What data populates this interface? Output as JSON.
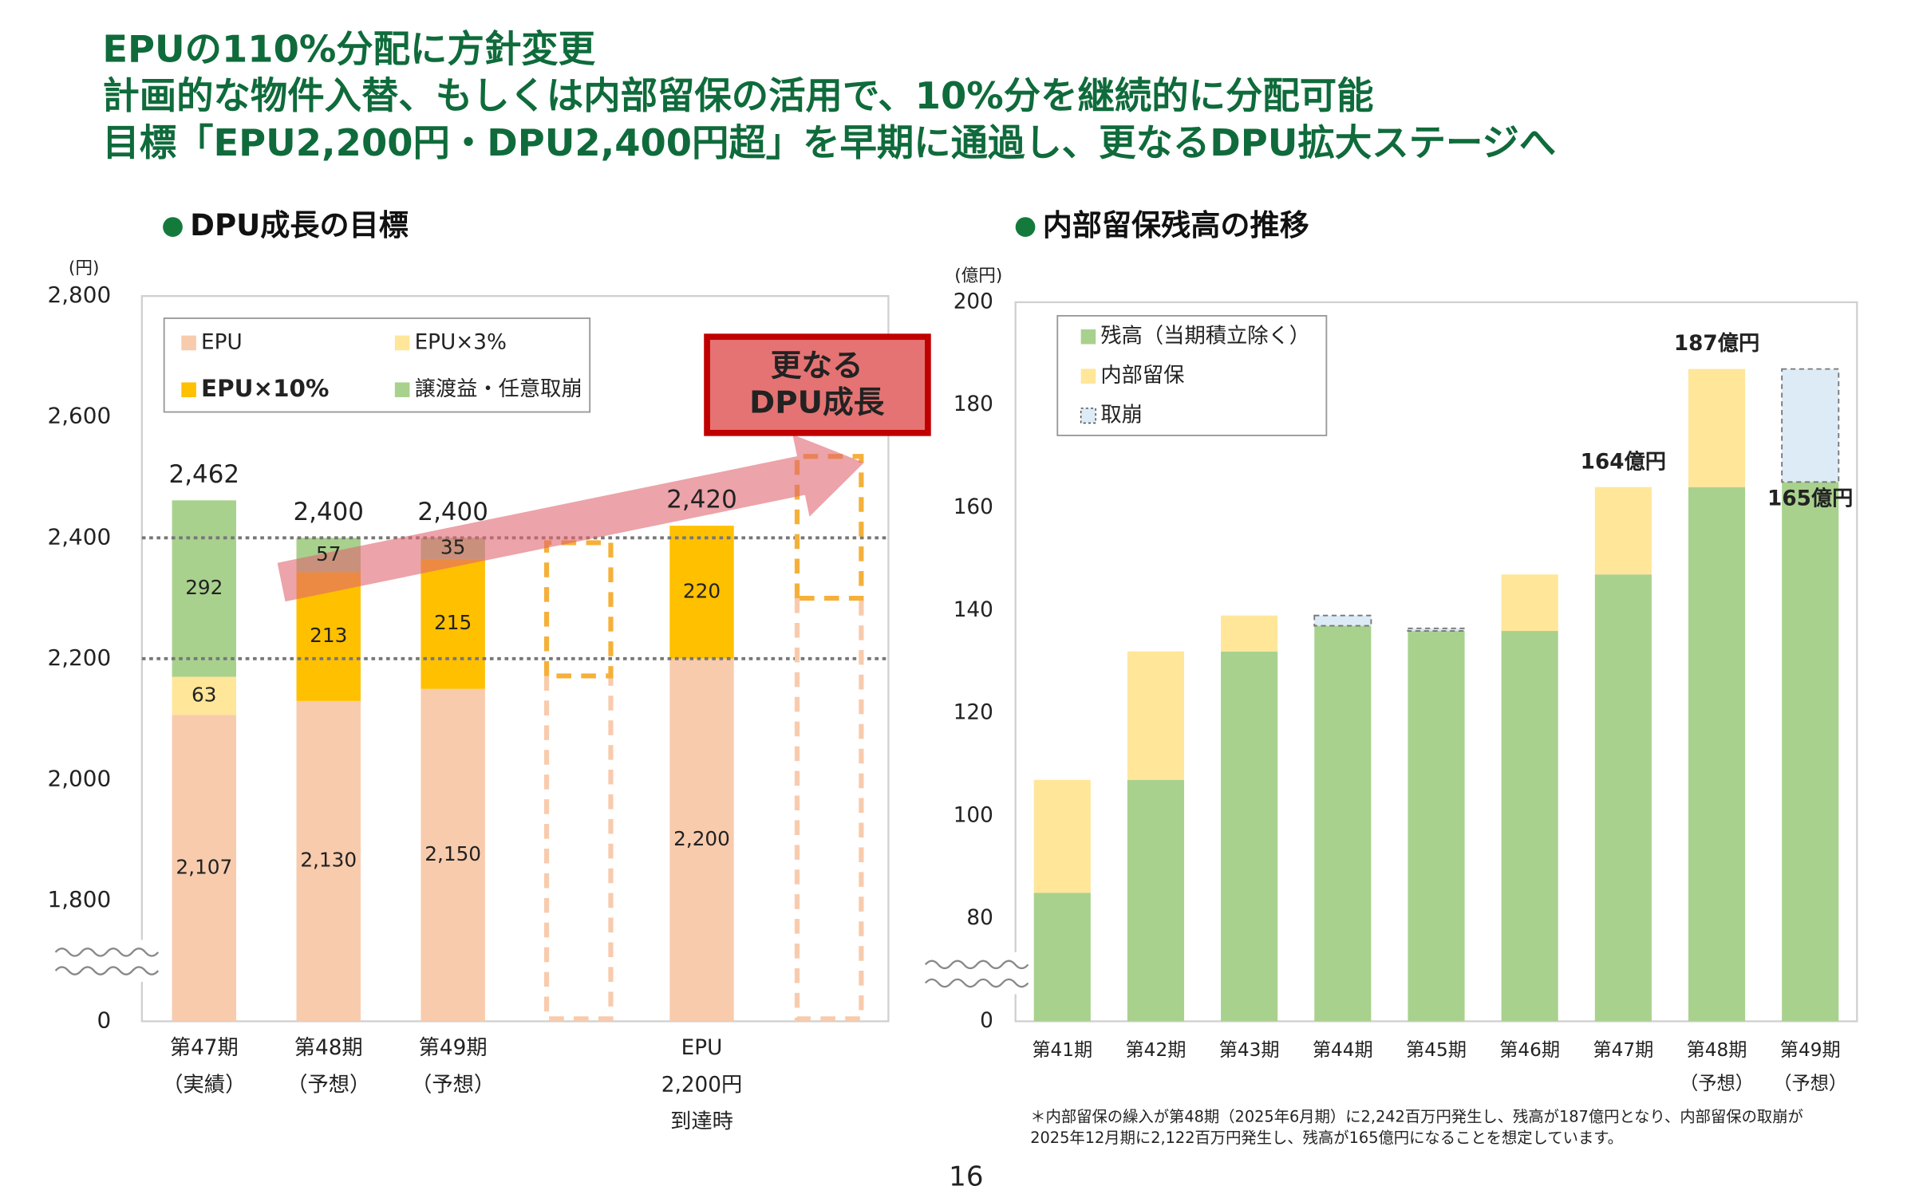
{
  "headline": [
    "EPUの110%分配に方針変更",
    "計画的な物件入替、もしくは内部留保の活用で、10%分を継続的に分配可能",
    "目標「EPU2,200円・DPU2,400円超」を早期に通過し、更なるDPU拡大ステージへ"
  ],
  "chart_data": [
    {
      "type": "bar",
      "stacked": true,
      "title": "DPU成長の目標",
      "y_unit": "(円)",
      "categories": [
        [
          "第47期",
          "（実績）"
        ],
        [
          "第48期",
          "（予想）"
        ],
        [
          "第49期",
          "（予想）"
        ],
        null,
        [
          "EPU",
          "2,200円",
          "到達時"
        ],
        null
      ],
      "series": [
        {
          "name": "EPU",
          "color": "#f8cbad",
          "values": [
            2107,
            2130,
            2150,
            null,
            2200,
            null
          ],
          "value_labels": [
            "2,107",
            "2,130",
            "2,150",
            null,
            "2,200",
            null
          ]
        },
        {
          "name": "EPU×3%",
          "color": "#ffe699",
          "values": [
            63,
            null,
            null,
            null,
            null,
            null
          ]
        },
        {
          "name": "EPU×10%",
          "color": "#ffc000",
          "values": [
            null,
            213,
            215,
            null,
            220,
            null
          ],
          "legend_bold": true
        },
        {
          "name": "譲渡益・任意取崩",
          "color": "#a9d18e",
          "values": [
            292,
            57,
            35,
            null,
            null,
            null
          ]
        }
      ],
      "totals": [
        2462,
        2400,
        2400,
        null,
        2420,
        null
      ],
      "total_labels": [
        "2,462",
        "2,400",
        "2,400",
        null,
        "2,420",
        null
      ],
      "data_labels": true,
      "reference_lines": [
        2200,
        2400
      ],
      "annotation": [
        "更なる",
        "DPU成長"
      ],
      "ylim": [
        0,
        2800
      ],
      "yticks": [
        0,
        {
          "value": 1800,
          "label": "1,800"
        },
        {
          "value": 2000,
          "label": "2,000"
        },
        {
          "value": 2200,
          "label": "2,200"
        },
        {
          "value": 2400,
          "label": "2,400"
        },
        {
          "value": 2600,
          "label": "2,600"
        },
        {
          "value": 2800,
          "label": "2,800"
        }
      ],
      "grid": false,
      "legend": "top-left"
    },
    {
      "type": "bar",
      "stacked": true,
      "title": "内部留保残高の推移",
      "y_unit": "(億円)",
      "categories": [
        [
          "第41期"
        ],
        [
          "第42期"
        ],
        [
          "第43期"
        ],
        [
          "第44期"
        ],
        [
          "第45期"
        ],
        [
          "第46期"
        ],
        [
          "第47期"
        ],
        [
          "第48期",
          "（予想）"
        ],
        [
          "第49期",
          "（予想）"
        ]
      ],
      "series": [
        {
          "name": "残高（当期積立除く）",
          "color": "#a9d18e",
          "values": [
            85,
            107,
            132,
            137,
            136,
            136,
            147,
            164,
            165
          ],
          "value_labels": [
            null,
            null,
            null,
            null,
            null,
            null,
            null,
            null,
            "165億円"
          ]
        },
        {
          "name": "内部留保",
          "color": "#ffe699",
          "values": [
            22,
            25,
            7,
            null,
            null,
            11,
            17,
            23,
            null
          ]
        },
        {
          "name": "取崩",
          "color": "#ddebf7",
          "values": [
            null,
            null,
            null,
            2,
            0.5,
            null,
            null,
            null,
            22
          ],
          "dashed": true
        }
      ],
      "totals": [
        null,
        null,
        null,
        null,
        null,
        null,
        164,
        187,
        null
      ],
      "total_labels": [
        null,
        null,
        null,
        null,
        null,
        null,
        "164億円",
        "187億円",
        null
      ],
      "data_labels": false,
      "label_color": "#e00000",
      "value_label_position": "top",
      "ylim": [
        0,
        200
      ],
      "yticks": [
        0,
        80,
        100,
        120,
        140,
        160,
        180,
        200
      ],
      "grid": false,
      "legend": "top-left"
    }
  ],
  "footnote": [
    "＊内部留保の繰入が第48期（2025年6月期）に2,242百万円発生し、残高が187億円となり、内部留保の取崩が",
    "2025年12月期に2,122百万円発生し、残高が165億円になることを想定しています。"
  ],
  "page_number": 16
}
